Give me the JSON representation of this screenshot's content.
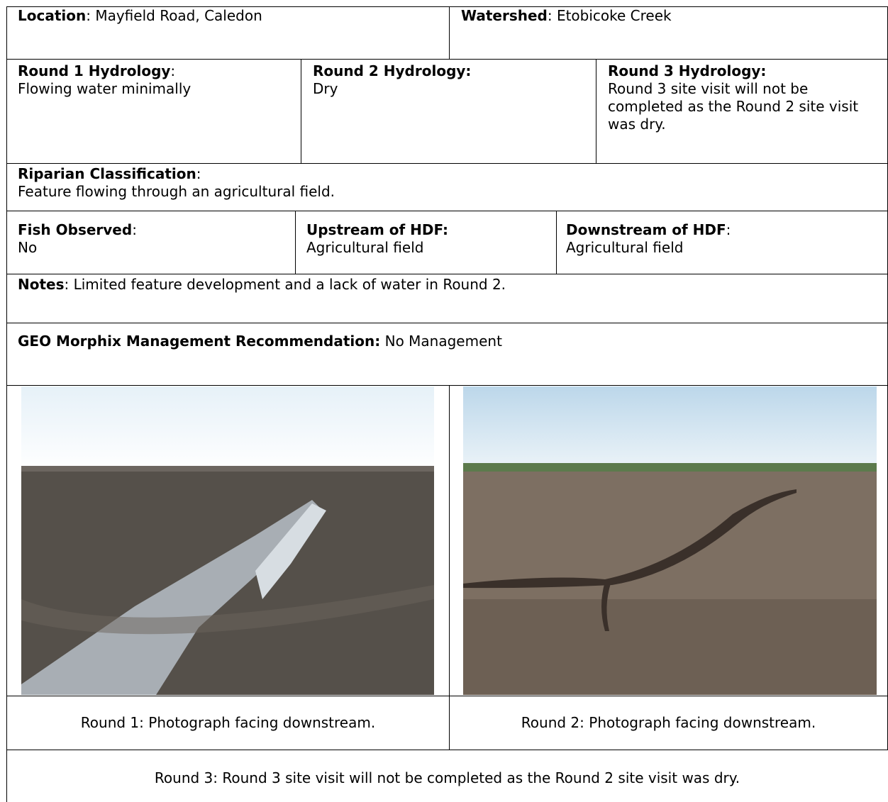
{
  "location": {
    "label": "Location",
    "value": ": Mayfield Road, Caledon"
  },
  "watershed": {
    "label": "Watershed",
    "value": ": Etobicoke Creek"
  },
  "round1_hydrology": {
    "label": "Round 1 Hydrology",
    "colon": ":",
    "value": "Flowing water minimally"
  },
  "round2_hydrology": {
    "label": "Round 2 Hydrology:",
    "value": "Dry"
  },
  "round3_hydrology": {
    "label": "Round 3 Hydrology:",
    "value": "Round 3 site visit will not be completed as the Round 2 site visit was dry."
  },
  "riparian": {
    "label": "Riparian Classification",
    "colon": ":",
    "value": "Feature flowing through an agricultural field."
  },
  "fish": {
    "label": "Fish Observed",
    "colon": ":",
    "value": "No"
  },
  "upstream": {
    "label": "Upstream of HDF:",
    "value": "Agricultural field"
  },
  "downstream": {
    "label": "Downstream of HDF",
    "colon": ":",
    "value": "Agricultural field"
  },
  "notes": {
    "label": "Notes",
    "value": ": Limited feature development and a lack of water in Round 2."
  },
  "recommendation": {
    "label": "GEO Morphix Management Recommendation:",
    "value": " No Management"
  },
  "photos": [
    {
      "caption": "Round 1: Photograph facing downstream."
    },
    {
      "caption": "Round 2: Photograph facing downstream."
    }
  ],
  "round3_caption": "Round 3: Round 3 site visit will not be completed as the Round 2 site visit was dry."
}
